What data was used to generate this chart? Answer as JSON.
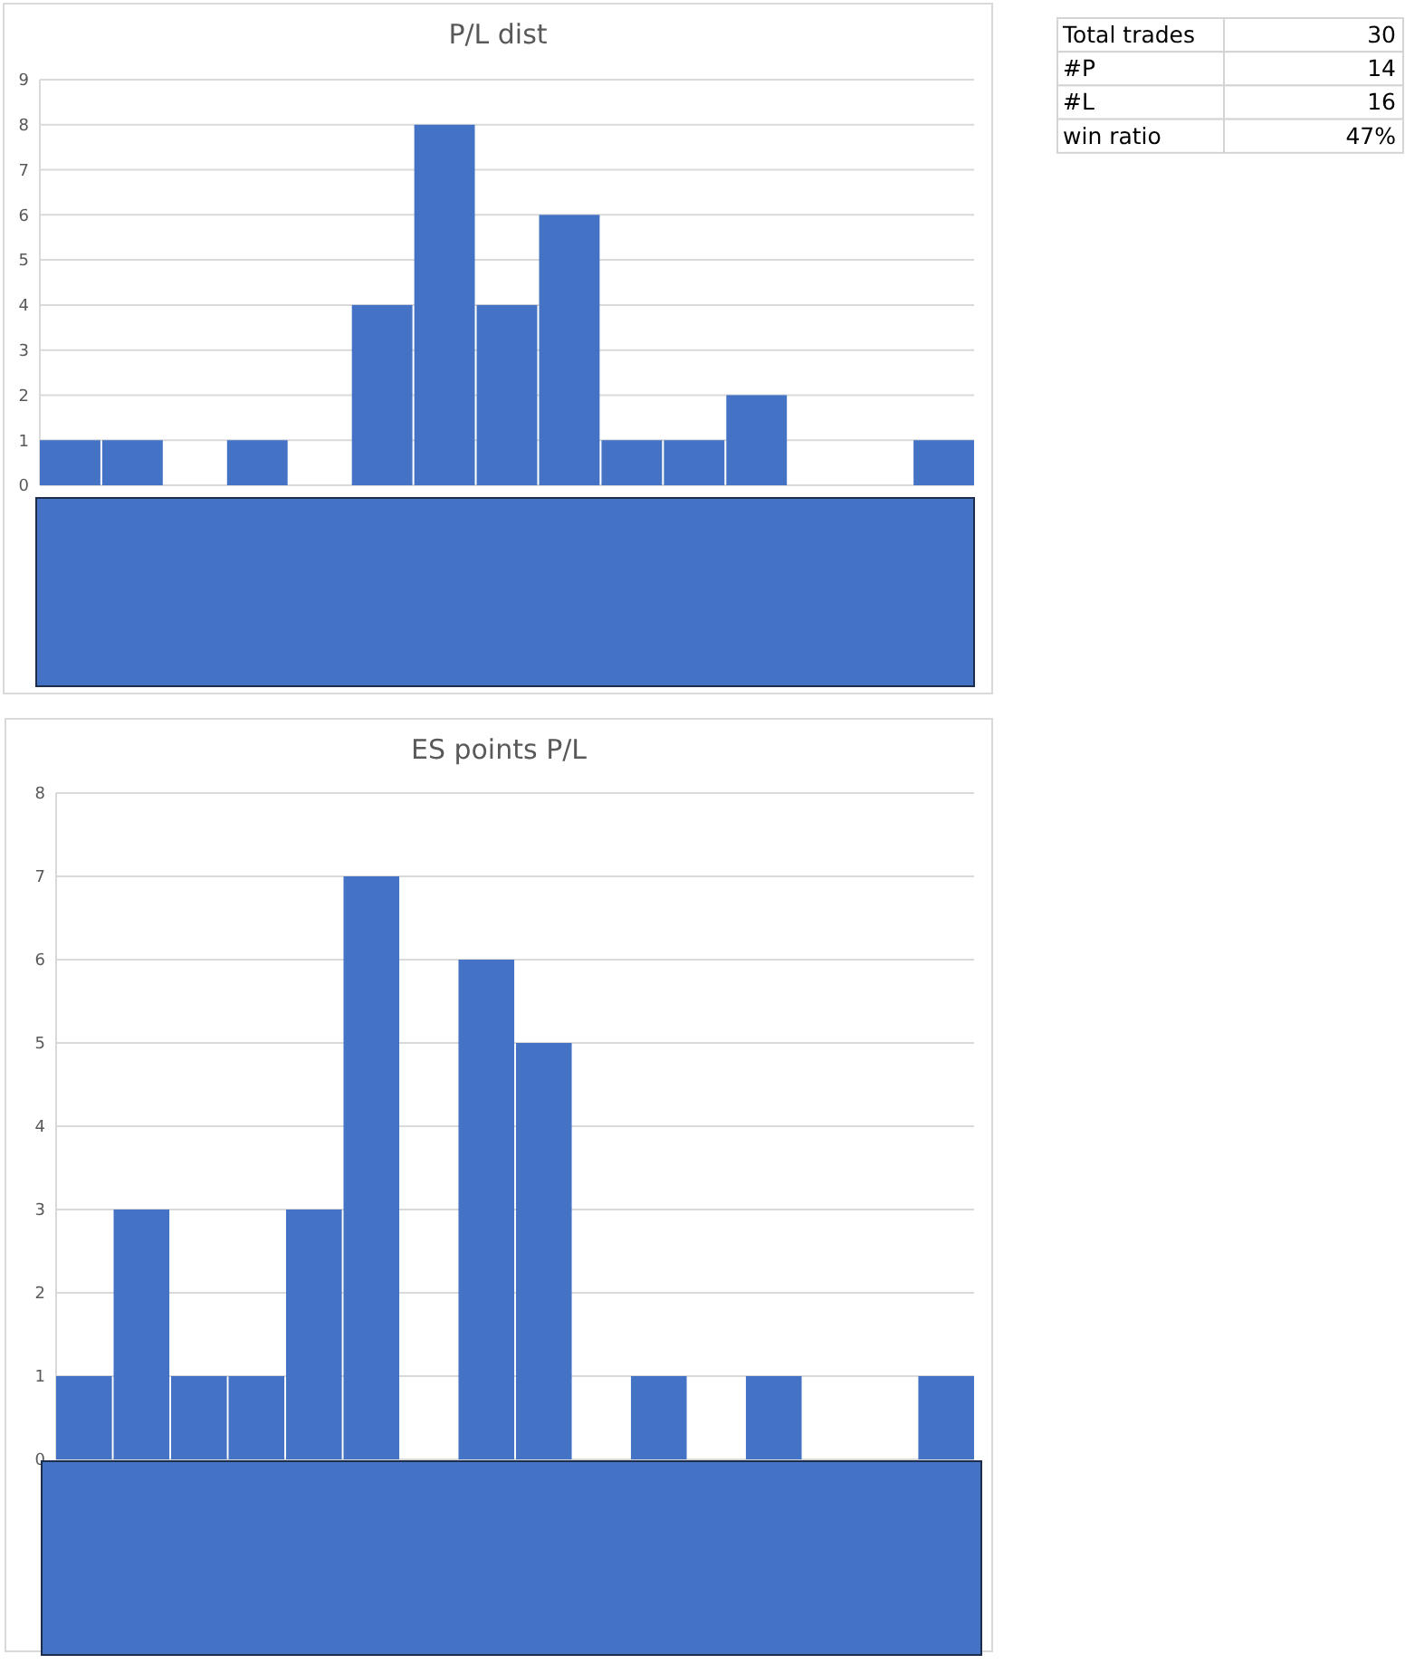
{
  "chart_data": [
    {
      "type": "bar",
      "title": "P/L dist",
      "categories": [
        null,
        null,
        null,
        null,
        null,
        null,
        null,
        null,
        null,
        null,
        null,
        null,
        null,
        null,
        null
      ],
      "values": [
        1,
        1,
        0,
        1,
        0,
        4,
        8,
        4,
        6,
        1,
        1,
        2,
        0,
        0,
        1
      ],
      "color": "#4472c4",
      "ylim": [
        0,
        9
      ],
      "yticks": [
        0,
        1,
        2,
        3,
        4,
        5,
        6,
        7,
        8,
        9
      ],
      "grid": "y",
      "tick_labels": "y"
    },
    {
      "type": "bar",
      "title": "ES points P/L",
      "categories": [
        null,
        null,
        null,
        null,
        null,
        null,
        null,
        null,
        null,
        null,
        null,
        null,
        null,
        null,
        null,
        null
      ],
      "values": [
        1,
        3,
        1,
        1,
        3,
        7,
        0,
        6,
        5,
        0,
        1,
        0,
        1,
        0,
        0,
        1
      ],
      "color": "#4472c4",
      "ylim": [
        0,
        8
      ],
      "yticks": [
        0,
        1,
        2,
        3,
        4,
        5,
        6,
        7,
        8
      ],
      "grid": "y",
      "tick_labels": "y"
    },
    {
      "type": "other",
      "categories": [
        "Total trades",
        "#P",
        "#L",
        "win ratio"
      ],
      "value_labels": [
        "30",
        "14",
        "16",
        "47%"
      ]
    }
  ]
}
